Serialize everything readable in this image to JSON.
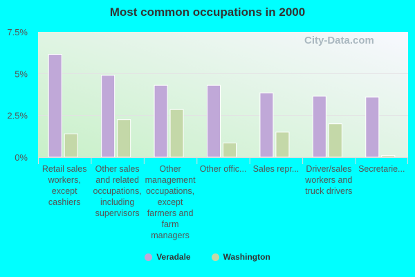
{
  "chart_data": {
    "type": "bar",
    "title": "Most common occupations in 2000",
    "categories": [
      "Retail sales workers, except cashiers",
      "Other sales and related occupations, including supervisors",
      "Other management occupations, except farmers and farm managers",
      "Other offic...",
      "Sales repr...",
      "Driver/sales workers and truck drivers",
      "Secretarie..."
    ],
    "series": [
      {
        "name": "Veradale",
        "color": "#c0a8d8",
        "values": [
          6.15,
          4.9,
          4.3,
          4.3,
          3.85,
          3.65,
          3.6
        ]
      },
      {
        "name": "Washington",
        "color": "#c4d8a8",
        "values": [
          1.4,
          2.25,
          2.85,
          0.85,
          1.5,
          2.0,
          0.1
        ]
      }
    ],
    "yticks": [
      "0%",
      "2.5%",
      "5%",
      "7.5%"
    ],
    "ylim": [
      0,
      7.5
    ],
    "grid": true,
    "legend": "bottom"
  },
  "watermark": "City-Data.com"
}
